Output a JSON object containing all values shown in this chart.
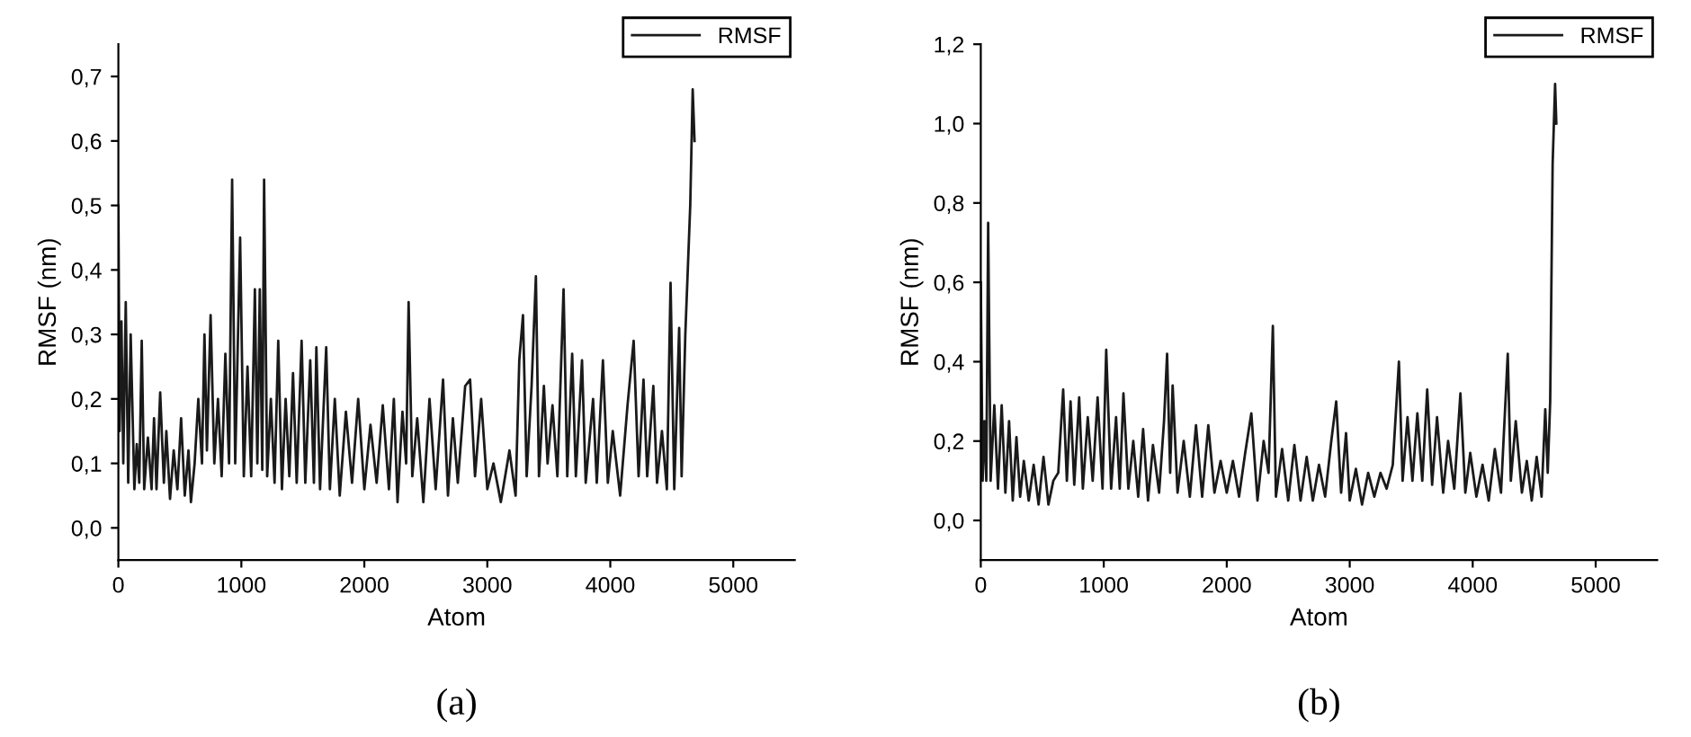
{
  "chart_data": [
    {
      "type": "line",
      "xlabel": "Atom",
      "ylabel": "RMSF (nm)",
      "annotations": [
        "(a)"
      ],
      "legend": "top right",
      "xlim": [
        0,
        5500
      ],
      "xticks": [
        0,
        1000,
        2000,
        3000,
        4000,
        5000
      ],
      "ylim": [
        -0.05,
        0.75
      ],
      "yticks": [
        {
          "value": 0,
          "label": "0,0"
        },
        {
          "value": 0.1,
          "label": "0,1"
        },
        {
          "value": 0.2,
          "label": "0,2"
        },
        {
          "value": 0.3,
          "label": "0,3"
        },
        {
          "value": 0.4,
          "label": "0,4"
        },
        {
          "value": 0.5,
          "label": "0,5"
        },
        {
          "value": 0.6,
          "label": "0,6"
        },
        {
          "value": 0.7,
          "label": "0,7"
        }
      ],
      "series": [
        {
          "name": "RMSF",
          "color": "#1a1a1a",
          "x": [
            0,
            10,
            25,
            40,
            60,
            80,
            100,
            130,
            150,
            170,
            190,
            210,
            240,
            270,
            290,
            310,
            340,
            370,
            390,
            420,
            450,
            480,
            510,
            540,
            570,
            590,
            620,
            650,
            680,
            700,
            720,
            750,
            780,
            810,
            840,
            870,
            900,
            925,
            950,
            990,
            1020,
            1050,
            1080,
            1110,
            1130,
            1150,
            1170,
            1185,
            1210,
            1240,
            1270,
            1300,
            1330,
            1360,
            1390,
            1420,
            1450,
            1490,
            1520,
            1560,
            1590,
            1610,
            1640,
            1690,
            1720,
            1760,
            1800,
            1850,
            1900,
            1950,
            2000,
            2050,
            2100,
            2150,
            2200,
            2240,
            2270,
            2310,
            2340,
            2360,
            2390,
            2430,
            2480,
            2530,
            2580,
            2640,
            2680,
            2720,
            2760,
            2820,
            2860,
            2900,
            2950,
            3000,
            3050,
            3110,
            3180,
            3230,
            3260,
            3290,
            3320,
            3360,
            3395,
            3420,
            3460,
            3490,
            3530,
            3570,
            3620,
            3650,
            3690,
            3720,
            3770,
            3800,
            3860,
            3890,
            3940,
            3980,
            4020,
            4080,
            4140,
            4190,
            4230,
            4270,
            4300,
            4350,
            4380,
            4420,
            4460,
            4490,
            4520,
            4560,
            4580,
            4610,
            4630,
            4650,
            4670,
            4685
          ],
          "values": [
            0.5,
            0.15,
            0.32,
            0.1,
            0.35,
            0.07,
            0.3,
            0.06,
            0.13,
            0.07,
            0.29,
            0.06,
            0.14,
            0.06,
            0.17,
            0.06,
            0.21,
            0.07,
            0.15,
            0.045,
            0.12,
            0.06,
            0.17,
            0.05,
            0.12,
            0.04,
            0.1,
            0.2,
            0.1,
            0.3,
            0.12,
            0.33,
            0.1,
            0.2,
            0.08,
            0.27,
            0.1,
            0.54,
            0.1,
            0.45,
            0.08,
            0.25,
            0.08,
            0.37,
            0.1,
            0.37,
            0.09,
            0.54,
            0.08,
            0.2,
            0.07,
            0.29,
            0.06,
            0.2,
            0.08,
            0.24,
            0.07,
            0.29,
            0.07,
            0.26,
            0.07,
            0.28,
            0.06,
            0.28,
            0.06,
            0.2,
            0.05,
            0.18,
            0.07,
            0.2,
            0.06,
            0.16,
            0.07,
            0.19,
            0.06,
            0.2,
            0.04,
            0.18,
            0.1,
            0.35,
            0.08,
            0.17,
            0.04,
            0.2,
            0.06,
            0.23,
            0.05,
            0.17,
            0.07,
            0.22,
            0.23,
            0.08,
            0.2,
            0.06,
            0.1,
            0.04,
            0.12,
            0.05,
            0.26,
            0.33,
            0.08,
            0.22,
            0.39,
            0.08,
            0.22,
            0.1,
            0.19,
            0.08,
            0.37,
            0.08,
            0.27,
            0.08,
            0.26,
            0.07,
            0.2,
            0.07,
            0.26,
            0.07,
            0.15,
            0.05,
            0.19,
            0.29,
            0.08,
            0.23,
            0.08,
            0.22,
            0.07,
            0.15,
            0.06,
            0.38,
            0.06,
            0.31,
            0.08,
            0.3,
            0.4,
            0.5,
            0.68,
            0.6
          ]
        }
      ]
    },
    {
      "type": "line",
      "xlabel": "Atom",
      "ylabel": "RMSF (nm)",
      "annotations": [
        "(b)"
      ],
      "legend": "top right",
      "xlim": [
        0,
        5500
      ],
      "xticks": [
        0,
        1000,
        2000,
        3000,
        4000,
        5000
      ],
      "ylim": [
        -0.1,
        1.2
      ],
      "yticks": [
        {
          "value": 0,
          "label": "0,0"
        },
        {
          "value": 0.2,
          "label": "0,2"
        },
        {
          "value": 0.4,
          "label": "0,4"
        },
        {
          "value": 0.6,
          "label": "0,6"
        },
        {
          "value": 0.8,
          "label": "0,8"
        },
        {
          "value": 1.0,
          "label": "1,0"
        },
        {
          "value": 1.2,
          "label": "1,2"
        }
      ],
      "series": [
        {
          "name": "RMSF",
          "color": "#1a1a1a",
          "x": [
            0,
            15,
            30,
            45,
            60,
            80,
            110,
            140,
            170,
            200,
            230,
            260,
            290,
            320,
            350,
            390,
            430,
            470,
            510,
            550,
            590,
            630,
            670,
            700,
            730,
            760,
            800,
            830,
            870,
            910,
            950,
            990,
            1020,
            1060,
            1100,
            1130,
            1160,
            1200,
            1240,
            1280,
            1320,
            1360,
            1400,
            1450,
            1490,
            1515,
            1540,
            1560,
            1600,
            1650,
            1700,
            1750,
            1800,
            1850,
            1900,
            1950,
            2000,
            2050,
            2100,
            2150,
            2200,
            2250,
            2300,
            2340,
            2375,
            2400,
            2450,
            2500,
            2550,
            2600,
            2650,
            2700,
            2750,
            2800,
            2850,
            2890,
            2930,
            2970,
            3000,
            3050,
            3100,
            3150,
            3200,
            3250,
            3300,
            3350,
            3400,
            3430,
            3470,
            3510,
            3550,
            3590,
            3630,
            3670,
            3710,
            3760,
            3800,
            3850,
            3900,
            3940,
            3980,
            4030,
            4080,
            4130,
            4180,
            4230,
            4260,
            4285,
            4310,
            4350,
            4400,
            4440,
            4480,
            4520,
            4560,
            4590,
            4610,
            4630,
            4650,
            4670,
            4680
          ],
          "values": [
            0.6,
            0.1,
            0.25,
            0.1,
            0.75,
            0.1,
            0.29,
            0.08,
            0.29,
            0.07,
            0.25,
            0.05,
            0.21,
            0.06,
            0.15,
            0.05,
            0.14,
            0.04,
            0.16,
            0.04,
            0.1,
            0.12,
            0.33,
            0.1,
            0.3,
            0.09,
            0.31,
            0.08,
            0.26,
            0.1,
            0.31,
            0.08,
            0.43,
            0.08,
            0.26,
            0.08,
            0.32,
            0.08,
            0.2,
            0.06,
            0.23,
            0.05,
            0.19,
            0.07,
            0.25,
            0.42,
            0.12,
            0.34,
            0.07,
            0.2,
            0.06,
            0.24,
            0.06,
            0.24,
            0.07,
            0.15,
            0.07,
            0.15,
            0.06,
            0.17,
            0.27,
            0.05,
            0.2,
            0.12,
            0.49,
            0.06,
            0.18,
            0.05,
            0.19,
            0.05,
            0.16,
            0.05,
            0.14,
            0.06,
            0.2,
            0.3,
            0.07,
            0.22,
            0.05,
            0.13,
            0.04,
            0.12,
            0.06,
            0.12,
            0.08,
            0.14,
            0.4,
            0.1,
            0.26,
            0.1,
            0.27,
            0.1,
            0.33,
            0.09,
            0.26,
            0.07,
            0.2,
            0.08,
            0.32,
            0.07,
            0.17,
            0.06,
            0.14,
            0.05,
            0.18,
            0.07,
            0.26,
            0.42,
            0.1,
            0.25,
            0.07,
            0.15,
            0.05,
            0.16,
            0.06,
            0.28,
            0.12,
            0.3,
            0.9,
            1.1,
            1.0
          ]
        }
      ]
    }
  ]
}
